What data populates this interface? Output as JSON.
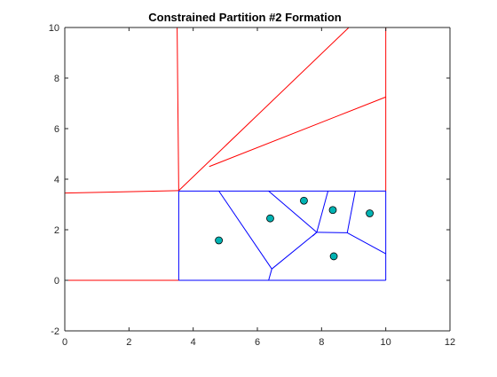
{
  "chart_data": {
    "type": "line",
    "title": "Constrained Partition #2 Formation",
    "xlabel": "",
    "ylabel": "",
    "xlim": [
      0,
      12
    ],
    "ylim": [
      -2,
      10
    ],
    "xticks": [
      0,
      2,
      4,
      6,
      8,
      10,
      12
    ],
    "yticks": [
      -2,
      0,
      2,
      4,
      6,
      8,
      10
    ],
    "grid": false,
    "legend": "none",
    "colors": {
      "region_boundaries": "#ff0000",
      "cell_boundaries": "#0000ff",
      "points_fill": "#00b3b3",
      "points_edge": "#000000",
      "axes": "#262626"
    },
    "series": [
      {
        "color": "#ff0000",
        "segments": [
          [
            [
              0,
              10
            ],
            [
              10,
              10
            ]
          ],
          [
            [
              0,
              10
            ],
            [
              0,
              0
            ]
          ],
          [
            [
              0,
              0
            ],
            [
              3.55,
              0
            ]
          ],
          [
            [
              10,
              10
            ],
            [
              10,
              3.53
            ]
          ],
          [
            [
              3.5,
              10
            ],
            [
              3.55,
              3.55
            ]
          ],
          [
            [
              0,
              3.45
            ],
            [
              3.55,
              3.55
            ]
          ],
          [
            [
              3.55,
              3.55
            ],
            [
              8.85,
              10
            ]
          ],
          [
            [
              4.5,
              4.5
            ],
            [
              10,
              7.25
            ]
          ]
        ]
      },
      {
        "color": "#0000ff",
        "segments": [
          [
            [
              3.55,
              3.53
            ],
            [
              10,
              3.53
            ]
          ],
          [
            [
              3.55,
              3.53
            ],
            [
              3.55,
              0
            ]
          ],
          [
            [
              3.55,
              0
            ],
            [
              10,
              0
            ]
          ],
          [
            [
              10,
              3.53
            ],
            [
              10,
              0
            ]
          ],
          [
            [
              4.8,
              3.53
            ],
            [
              6.45,
              0.45
            ]
          ],
          [
            [
              6.45,
              0.45
            ],
            [
              6.35,
              0
            ]
          ],
          [
            [
              6.45,
              0.45
            ],
            [
              7.85,
              1.9
            ]
          ],
          [
            [
              6.35,
              3.53
            ],
            [
              7.85,
              1.9
            ]
          ],
          [
            [
              8.2,
              3.53
            ],
            [
              7.85,
              1.9
            ]
          ],
          [
            [
              7.85,
              1.9
            ],
            [
              8.8,
              1.88
            ]
          ],
          [
            [
              8.8,
              1.88
            ],
            [
              9.05,
              3.53
            ]
          ],
          [
            [
              8.8,
              1.88
            ],
            [
              10,
              1.05
            ]
          ],
          [
            [
              7.85,
              1.9
            ],
            [
              7.72,
              1.75
            ]
          ]
        ]
      },
      {
        "type": "scatter",
        "color": "#00b3b3",
        "points": [
          [
            4.8,
            1.58
          ],
          [
            6.4,
            2.45
          ],
          [
            7.45,
            3.15
          ],
          [
            8.35,
            2.78
          ],
          [
            9.5,
            2.65
          ],
          [
            8.38,
            0.95
          ]
        ]
      }
    ]
  }
}
